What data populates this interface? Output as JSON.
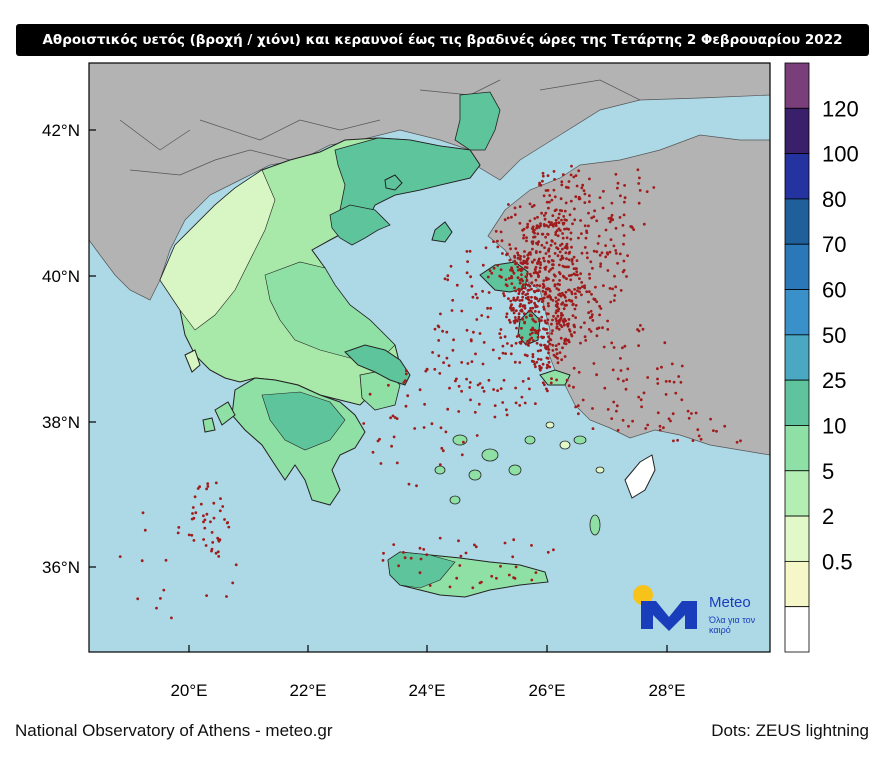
{
  "title": "Αθροιστικός υετός (βροχή / χιόνι) και κεραυνοί έως τις βραδινές ώρες της Τετάρτης 2 Φεβρουαρίου 2022",
  "footer": {
    "source": "National Observatory of Athens - meteo.gr",
    "dots_note": "Dots: ZEUS lightning"
  },
  "logo": {
    "name": "Meteo",
    "slogan": "Όλα για τον καιρό"
  },
  "axes": {
    "lat_labels": [
      "42°N",
      "40°N",
      "38°N",
      "36°N"
    ],
    "lon_labels": [
      "20°E",
      "22°E",
      "24°E",
      "26°E",
      "28°E"
    ]
  },
  "legend": {
    "labels": [
      "0.5",
      "2",
      "5",
      "10",
      "25",
      "50",
      "60",
      "70",
      "80",
      "100",
      "120"
    ],
    "colors": [
      "#ffffff",
      "#f5f7c8",
      "#e1f9c9",
      "#b3efb3",
      "#8ee0a6",
      "#5fc49d",
      "#4aa8c2",
      "#3a90c8",
      "#2a78b8",
      "#1f5f9a",
      "#2433a0",
      "#3a1f6a",
      "#7a3f7a"
    ]
  },
  "colors": {
    "sea": "#add8e6",
    "land_other": "#b3b3b3",
    "lightning": "#a01c1c",
    "precip_light": "#d8f5c4",
    "precip_mid": "#8fe0a4",
    "precip_high": "#5ec49c"
  }
}
